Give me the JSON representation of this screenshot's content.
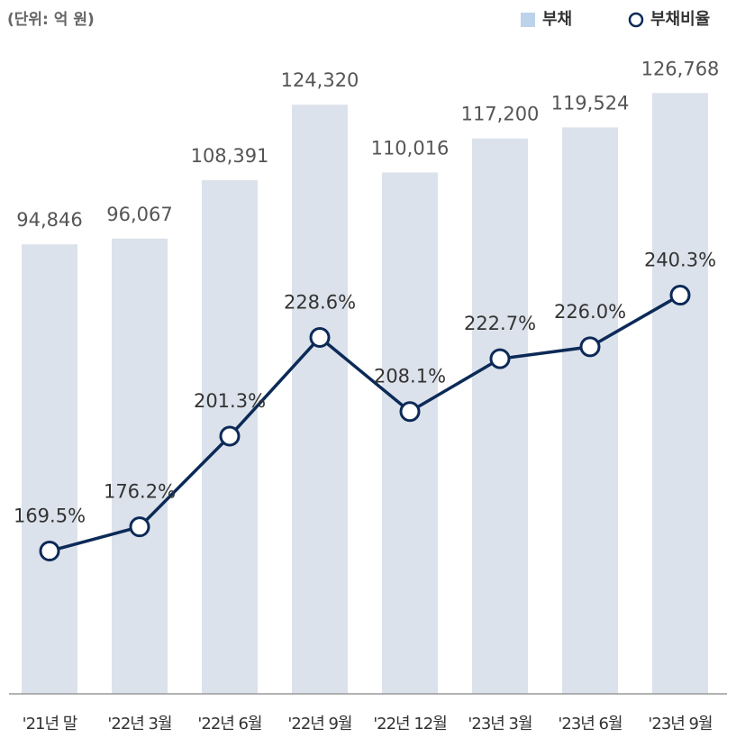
{
  "chart_data": {
    "type": "bar_line",
    "unit_label": "(단위: 억 원)",
    "categories": [
      "'21년 말",
      "'22년 3월",
      "'22년 6월",
      "'22년 9월",
      "'22년 12월",
      "'23년 3월",
      "'23년 6월",
      "'23년 9월"
    ],
    "series": [
      {
        "name": "부채",
        "type": "bar",
        "color": "#dce2eb",
        "legend_color": "#bcd3ea",
        "values": [
          94846,
          96067,
          108391,
          124320,
          110016,
          117200,
          119524,
          126768
        ],
        "value_labels": [
          "94,846",
          "96,067",
          "108,391",
          "124,320",
          "110,016",
          "117,200",
          "119,524",
          "126,768"
        ]
      },
      {
        "name": "부채비율",
        "type": "line",
        "axis": "y2",
        "color": "#0c2a57",
        "values": [
          169.5,
          176.2,
          201.3,
          228.6,
          208.1,
          222.7,
          226.0,
          240.3
        ],
        "value_labels": [
          "169.5%",
          "176.2%",
          "201.3%",
          "228.6%",
          "208.1%",
          "222.7%",
          "226.0%",
          "240.3%"
        ]
      }
    ],
    "ylim": [
      0,
      135000
    ],
    "y2lim": [
      130,
      307
    ],
    "legend": "top-right"
  }
}
